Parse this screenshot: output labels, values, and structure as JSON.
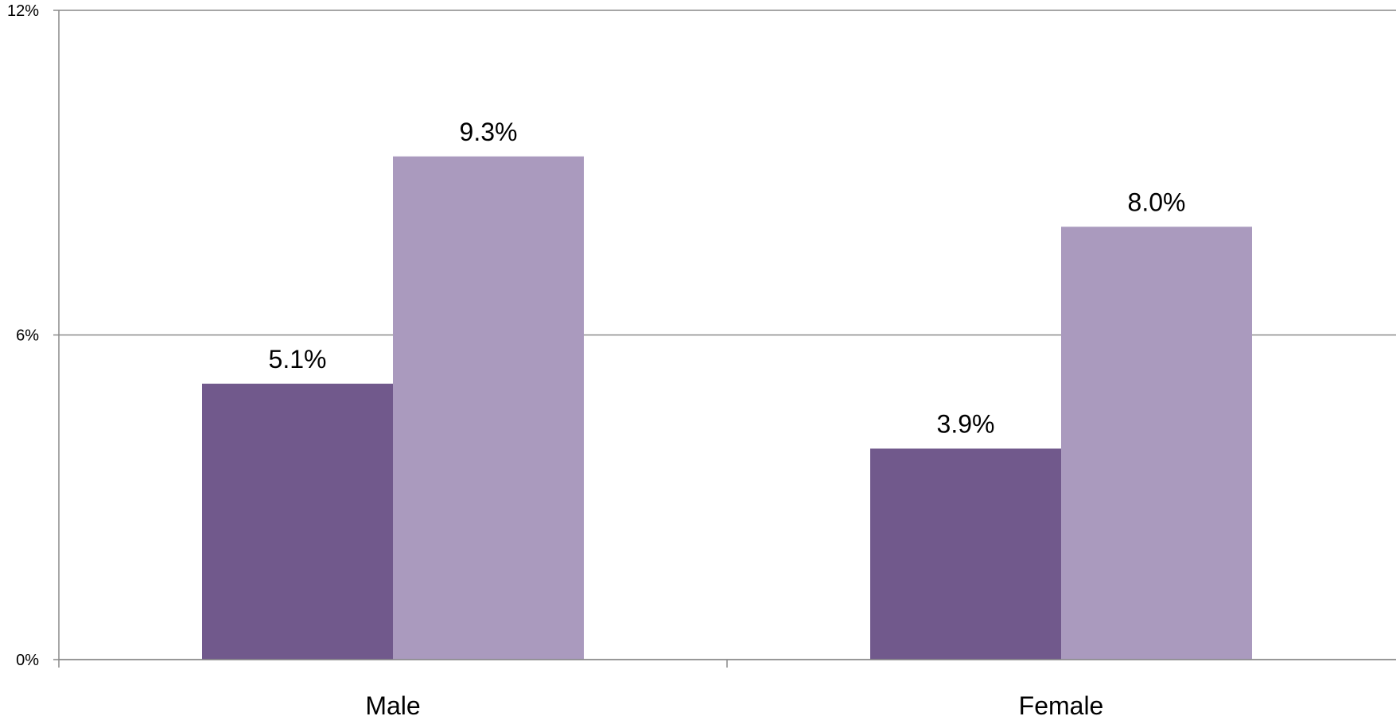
{
  "chart_data": {
    "type": "bar",
    "categories": [
      "Male",
      "Female"
    ],
    "series": [
      {
        "values": [
          5.1,
          3.9
        ],
        "labels": [
          "5.1%",
          "3.9%"
        ],
        "color": "#71598c"
      },
      {
        "values": [
          9.3,
          8.0
        ],
        "labels": [
          "9.3%",
          "8.0%"
        ],
        "color": "#aa9abe"
      }
    ],
    "ylim": [
      0,
      12
    ],
    "yticks": [
      0,
      6,
      12
    ],
    "ytick_labels": [
      "0%",
      "6%",
      "12%"
    ],
    "title": "",
    "xlabel": "",
    "ylabel": "",
    "grid": true,
    "legend": "none",
    "axis_color": "#898989",
    "grid_color": "#898989"
  }
}
